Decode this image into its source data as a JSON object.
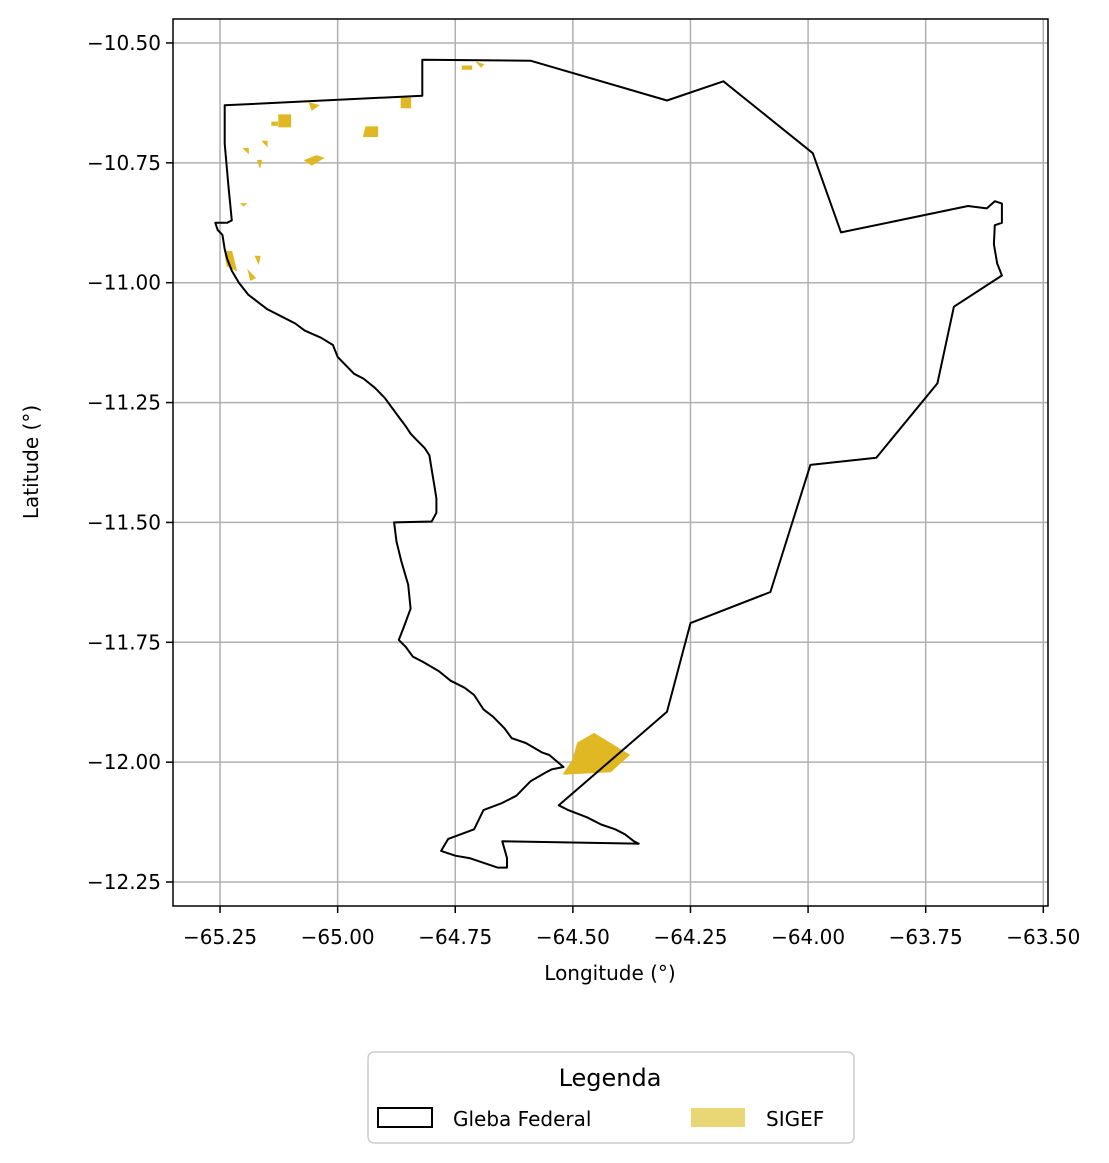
{
  "chart_data": {
    "type": "map",
    "xlabel": "Longitude (°)",
    "ylabel": "Latitude (°)",
    "xlim": [
      -65.35,
      -63.49
    ],
    "ylim": [
      -12.3,
      -10.45
    ],
    "xticks": [
      -65.25,
      -65.0,
      -64.75,
      -64.5,
      -64.25,
      -64.0,
      -63.75,
      -63.5
    ],
    "yticks": [
      -10.5,
      -10.75,
      -11.0,
      -11.25,
      -11.5,
      -11.75,
      -12.0,
      -12.25
    ],
    "xtick_labels": [
      "−65.25",
      "−65.00",
      "−64.75",
      "−64.50",
      "−64.25",
      "−64.00",
      "−63.75",
      "−63.50"
    ],
    "ytick_labels": [
      "−10.50",
      "−10.75",
      "−11.00",
      "−11.25",
      "−11.50",
      "−11.75",
      "−12.00",
      "−12.25"
    ],
    "grid": true,
    "legend": {
      "title": "Legenda",
      "placement": "bottom-center",
      "entries": [
        {
          "label": "Gleba Federal",
          "style": "outline",
          "color": "#000000"
        },
        {
          "label": "SIGEF",
          "style": "fill",
          "color": "#e9d675"
        }
      ]
    },
    "colors": {
      "gleba_outline": "#000000",
      "sigef_fill": "#dfb823",
      "sigef_legend": "#e9d675",
      "grid": "#b0b0b0"
    },
    "gleba_federal": [
      [
        -65.24,
        -10.63
      ],
      [
        -64.82,
        -10.61
      ],
      [
        -64.82,
        -10.535
      ],
      [
        -64.59,
        -10.537
      ],
      [
        -64.3,
        -10.62
      ],
      [
        -64.18,
        -10.58
      ],
      [
        -63.99,
        -10.73
      ],
      [
        -63.93,
        -10.895
      ],
      [
        -63.66,
        -10.84
      ],
      [
        -63.62,
        -10.845
      ],
      [
        -63.603,
        -10.83
      ],
      [
        -63.588,
        -10.835
      ],
      [
        -63.588,
        -10.875
      ],
      [
        -63.603,
        -10.88
      ],
      [
        -63.605,
        -10.92
      ],
      [
        -63.598,
        -10.96
      ],
      [
        -63.588,
        -10.985
      ],
      [
        -63.69,
        -11.05
      ],
      [
        -63.725,
        -11.21
      ],
      [
        -63.855,
        -11.365
      ],
      [
        -63.995,
        -11.38
      ],
      [
        -64.08,
        -11.645
      ],
      [
        -64.25,
        -11.71
      ],
      [
        -64.3,
        -11.895
      ],
      [
        -64.53,
        -12.09
      ],
      [
        -64.51,
        -12.1
      ],
      [
        -64.47,
        -12.115
      ],
      [
        -64.44,
        -12.13
      ],
      [
        -64.41,
        -12.14
      ],
      [
        -64.39,
        -12.15
      ],
      [
        -64.37,
        -12.165
      ],
      [
        -64.36,
        -12.17
      ],
      [
        -64.65,
        -12.165
      ],
      [
        -64.64,
        -12.2
      ],
      [
        -64.64,
        -12.22
      ],
      [
        -64.66,
        -12.22
      ],
      [
        -64.69,
        -12.21
      ],
      [
        -64.72,
        -12.2
      ],
      [
        -64.75,
        -12.195
      ],
      [
        -64.78,
        -12.185
      ],
      [
        -64.765,
        -12.16
      ],
      [
        -64.71,
        -12.14
      ],
      [
        -64.69,
        -12.1
      ],
      [
        -64.65,
        -12.085
      ],
      [
        -64.62,
        -12.07
      ],
      [
        -64.59,
        -12.04
      ],
      [
        -64.555,
        -12.02
      ],
      [
        -64.545,
        -12.015
      ],
      [
        -64.52,
        -12.01
      ],
      [
        -64.55,
        -11.985
      ],
      [
        -64.565,
        -11.98
      ],
      [
        -64.6,
        -11.96
      ],
      [
        -64.63,
        -11.95
      ],
      [
        -64.645,
        -11.93
      ],
      [
        -64.67,
        -11.905
      ],
      [
        -64.69,
        -11.89
      ],
      [
        -64.71,
        -11.86
      ],
      [
        -64.73,
        -11.845
      ],
      [
        -64.76,
        -11.83
      ],
      [
        -64.785,
        -11.81
      ],
      [
        -64.82,
        -11.79
      ],
      [
        -64.84,
        -11.78
      ],
      [
        -64.855,
        -11.76
      ],
      [
        -64.87,
        -11.745
      ],
      [
        -64.86,
        -11.72
      ],
      [
        -64.845,
        -11.68
      ],
      [
        -64.85,
        -11.63
      ],
      [
        -64.865,
        -11.58
      ],
      [
        -64.875,
        -11.54
      ],
      [
        -64.88,
        -11.5
      ],
      [
        -64.8,
        -11.498
      ],
      [
        -64.79,
        -11.48
      ],
      [
        -64.79,
        -11.45
      ],
      [
        -64.795,
        -11.42
      ],
      [
        -64.8,
        -11.39
      ],
      [
        -64.805,
        -11.36
      ],
      [
        -64.815,
        -11.345
      ],
      [
        -64.83,
        -11.33
      ],
      [
        -64.845,
        -11.315
      ],
      [
        -64.855,
        -11.3
      ],
      [
        -64.87,
        -11.28
      ],
      [
        -64.885,
        -11.26
      ],
      [
        -64.9,
        -11.24
      ],
      [
        -64.92,
        -11.22
      ],
      [
        -64.945,
        -11.2
      ],
      [
        -64.965,
        -11.19
      ],
      [
        -64.985,
        -11.17
      ],
      [
        -65.0,
        -11.155
      ],
      [
        -65.01,
        -11.13
      ],
      [
        -65.035,
        -11.115
      ],
      [
        -65.07,
        -11.1
      ],
      [
        -65.09,
        -11.085
      ],
      [
        -65.12,
        -11.07
      ],
      [
        -65.15,
        -11.055
      ],
      [
        -65.17,
        -11.04
      ],
      [
        -65.19,
        -11.025
      ],
      [
        -65.21,
        -11.0
      ],
      [
        -65.225,
        -10.975
      ],
      [
        -65.235,
        -10.95
      ],
      [
        -65.24,
        -10.93
      ],
      [
        -65.245,
        -10.9
      ],
      [
        -65.255,
        -10.89
      ],
      [
        -65.26,
        -10.875
      ],
      [
        -65.235,
        -10.875
      ],
      [
        -65.225,
        -10.87
      ],
      [
        -65.232,
        -10.8
      ],
      [
        -65.24,
        -10.71
      ]
    ],
    "sigef_parcels": [
      [
        [
          -64.52,
          -12.025
        ],
        [
          -64.42,
          -12.02
        ],
        [
          -64.38,
          -11.985
        ],
        [
          -64.455,
          -11.94
        ],
        [
          -64.49,
          -11.96
        ],
        [
          -64.5,
          -11.995
        ]
      ],
      [
        [
          -65.125,
          -10.65
        ],
        [
          -65.1,
          -10.65
        ],
        [
          -65.1,
          -10.675
        ],
        [
          -65.125,
          -10.675
        ]
      ],
      [
        [
          -64.94,
          -10.675
        ],
        [
          -64.915,
          -10.675
        ],
        [
          -64.915,
          -10.695
        ],
        [
          -64.945,
          -10.695
        ]
      ],
      [
        [
          -64.865,
          -10.615
        ],
        [
          -64.845,
          -10.615
        ],
        [
          -64.845,
          -10.635
        ],
        [
          -64.865,
          -10.635
        ]
      ],
      [
        [
          -65.07,
          -10.745
        ],
        [
          -65.045,
          -10.735
        ],
        [
          -65.03,
          -10.74
        ],
        [
          -65.055,
          -10.755
        ]
      ],
      [
        [
          -65.06,
          -10.625
        ],
        [
          -65.04,
          -10.63
        ],
        [
          -65.055,
          -10.64
        ]
      ],
      [
        [
          -65.24,
          -10.935
        ],
        [
          -65.225,
          -10.935
        ],
        [
          -65.215,
          -10.975
        ],
        [
          -65.235,
          -10.965
        ]
      ],
      [
        [
          -65.19,
          -10.975
        ],
        [
          -65.175,
          -10.99
        ],
        [
          -65.185,
          -10.995
        ]
      ],
      [
        [
          -65.14,
          -10.665
        ],
        [
          -65.128,
          -10.665
        ],
        [
          -65.128,
          -10.672
        ],
        [
          -65.14,
          -10.672
        ]
      ],
      [
        [
          -65.2,
          -10.72
        ],
        [
          -65.19,
          -10.72
        ],
        [
          -65.19,
          -10.73
        ]
      ],
      [
        [
          -65.16,
          -10.705
        ],
        [
          -65.15,
          -10.705
        ],
        [
          -65.15,
          -10.715
        ]
      ],
      [
        [
          -65.17,
          -10.745
        ],
        [
          -65.162,
          -10.745
        ],
        [
          -65.165,
          -10.76
        ]
      ],
      [
        [
          -65.205,
          -10.835
        ],
        [
          -65.195,
          -10.835
        ],
        [
          -65.2,
          -10.84
        ]
      ],
      [
        [
          -64.735,
          -10.548
        ],
        [
          -64.715,
          -10.548
        ],
        [
          -64.715,
          -10.555
        ],
        [
          -64.735,
          -10.555
        ]
      ],
      [
        [
          -64.705,
          -10.54
        ],
        [
          -64.69,
          -10.545
        ],
        [
          -64.695,
          -10.55
        ]
      ],
      [
        [
          -65.175,
          -10.945
        ],
        [
          -65.165,
          -10.945
        ],
        [
          -65.168,
          -10.96
        ]
      ]
    ]
  }
}
